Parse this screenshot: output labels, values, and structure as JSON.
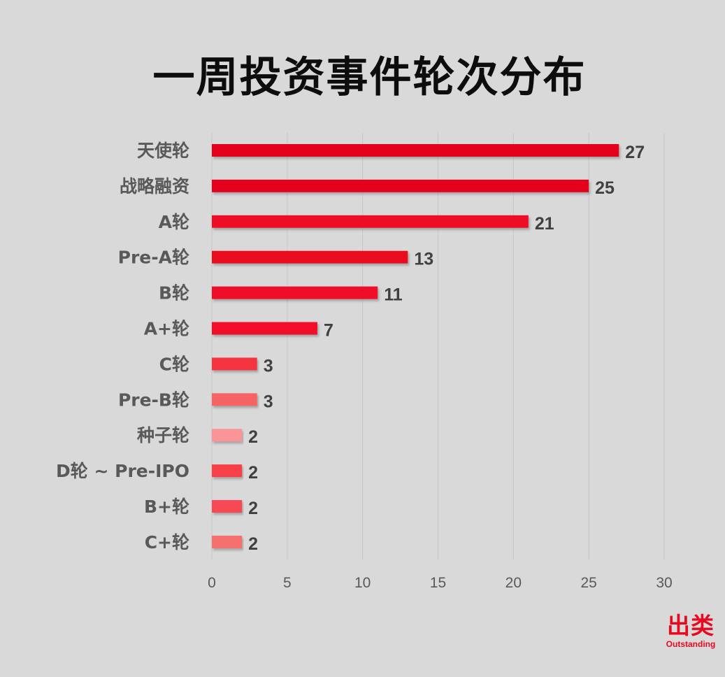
{
  "chart_data": {
    "type": "bar",
    "orientation": "horizontal",
    "title": "一周投资事件轮次分布",
    "categories": [
      "天使轮",
      "战略融资",
      "A轮",
      "Pre-A轮",
      "B轮",
      "A+轮",
      "C轮",
      "Pre-B轮",
      "种子轮",
      "D轮 ~ Pre-IPO",
      "B+轮",
      "C+轮"
    ],
    "values": [
      27,
      25,
      21,
      13,
      11,
      7,
      3,
      3,
      2,
      2,
      2,
      2
    ],
    "bar_colors": [
      "#e5011d",
      "#e5011d",
      "#ee0c26",
      "#e8071f",
      "#f0102a",
      "#f20e2b",
      "#f5303f",
      "#f66465",
      "#fa9496",
      "#f83f4a",
      "#f64a52",
      "#f6706e"
    ],
    "xlim": [
      0,
      30
    ],
    "x_ticks": [
      0,
      5,
      10,
      15,
      20,
      25,
      30
    ],
    "xlabel": "",
    "ylabel": "",
    "grid": "vertical",
    "data_labels": true
  },
  "logo": {
    "main": "出类",
    "sub": "Outstanding"
  },
  "colors": {
    "background": "#d9d9d9",
    "gridline": "#c6c6c6",
    "category_text": "#595959",
    "value_text": "#404040",
    "accent": "#e8091f"
  }
}
